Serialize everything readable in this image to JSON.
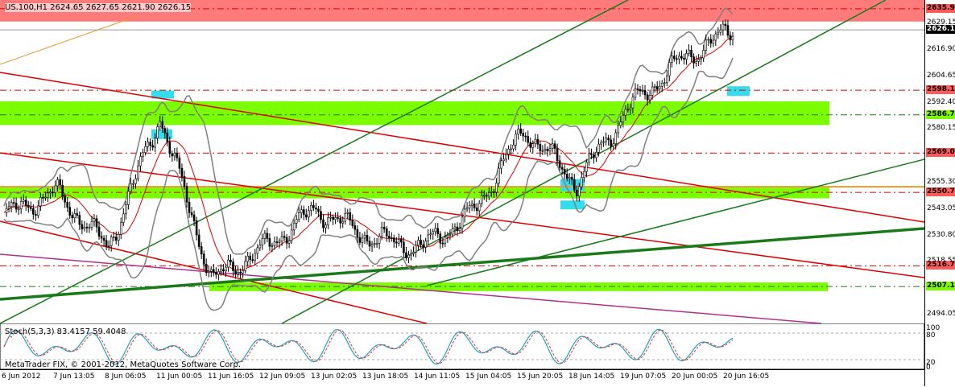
{
  "header": {
    "symbol_ohlc": "US.100,H1  2624.65 2627.65 2621.90 2626.15"
  },
  "price_axis": {
    "ticks": [
      "2629.15",
      "2616.90",
      "2604.65",
      "2592.40",
      "2580.15",
      "2555.30",
      "2543.05",
      "2530.80",
      "2518.55",
      "2494.05"
    ],
    "tags": [
      {
        "label": "2635.95",
        "color": "#ff5a5a"
      },
      {
        "label": "2626.15",
        "color": "#000000"
      },
      {
        "label": "2598.14",
        "color": "#ff5a5a"
      },
      {
        "label": "2586.74",
        "color": "#7cfc00"
      },
      {
        "label": "2569.03",
        "color": "#ff5a5a"
      },
      {
        "label": "2550.78",
        "color": "#ff5a5a"
      },
      {
        "label": "2516.71",
        "color": "#ff5a5a"
      },
      {
        "label": "2507.11",
        "color": "#7cfc00"
      }
    ]
  },
  "oscillator": {
    "label": "Stoch(5,3,3) 83.4157 59.4048",
    "levels": [
      "100",
      "80",
      "20",
      "0"
    ]
  },
  "copyright": "MetaTrader FIX, © 2001-2012, MetaQuotes Software Corp.",
  "time_axis": {
    "labels": [
      "6 Jun 2012",
      "7 Jun 13:05",
      "8 Jun 06:05",
      "11 Jun 00:05",
      "11 Jun 16:05",
      "12 Jun 09:05",
      "13 Jun 02:05",
      "13 Jun 18:05",
      "14 Jun 11:05",
      "15 Jun 04:05",
      "15 Jun 20:05",
      "18 Jun 14:05",
      "19 Jun 07:05",
      "20 Jun 00:05",
      "20 Jun 16:05"
    ]
  },
  "colors": {
    "resistance_zone": "#ff6b6b",
    "support_zone": "#7cfc00",
    "highlight": "#33ddee",
    "trend_green": "#1a7a1a",
    "trend_red": "#dd0000",
    "trend_magenta": "#b03090",
    "trend_orange": "#e69a30",
    "bollinger": "#808080",
    "stoch_main": "#20a0c0",
    "stoch_signal": "#dd3333"
  },
  "chart_data": {
    "type": "candlestick",
    "title": "US.100,H1",
    "ylim": [
      2490,
      2640
    ],
    "approx_close_path": [
      [
        "6 Jun 2012",
        2540
      ],
      [
        "7 Jun 13:05",
        2551
      ],
      [
        "8 Jun 06:05",
        2525
      ],
      [
        "11 Jun 00:05",
        2586
      ],
      [
        "11 Jun 16:05",
        2510
      ],
      [
        "12 Jun 09:05",
        2525
      ],
      [
        "13 Jun 02:05",
        2543
      ],
      [
        "13 Jun 18:05",
        2530
      ],
      [
        "14 Jun 11:05",
        2525
      ],
      [
        "15 Jun 04:05",
        2541
      ],
      [
        "15 Jun 20:05",
        2580
      ],
      [
        "18 Jun 14:05",
        2555
      ],
      [
        "19 Jun 07:05",
        2590
      ],
      [
        "20 Jun 00:05",
        2612
      ],
      [
        "20 Jun 16:05",
        2626.15
      ]
    ]
  }
}
